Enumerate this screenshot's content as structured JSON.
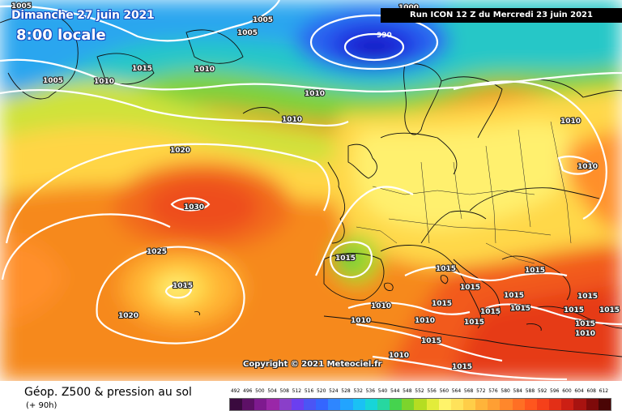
{
  "header": {
    "date_text": "Dimanche 27 juin 2021",
    "time_text": "8:00 locale",
    "run_text": "Run ICON 12 Z du Mercredi 23 juin 2021"
  },
  "map": {
    "isobar_labels": [
      "1005",
      "1005",
      "1005",
      "990",
      "1000",
      "1015",
      "1010",
      "1010",
      "1005",
      "1010",
      "1010",
      "1010",
      "1020",
      "1010",
      "1030",
      "1015",
      "1025",
      "1015",
      "1015",
      "1020",
      "1015",
      "1015",
      "1015",
      "1015",
      "1010",
      "1015",
      "1015",
      "1015",
      "1015",
      "1015",
      "1015",
      "1010",
      "1010",
      "1015",
      "1010",
      "1015",
      "1015",
      "1010"
    ],
    "copyright": "Copyright © 2021 Meteociel.fr"
  },
  "footer": {
    "title": "Géop. Z500 & pression au sol",
    "lead": "(+ 90h)",
    "scale_values": [
      "492",
      "496",
      "500",
      "504",
      "508",
      "512",
      "516",
      "520",
      "524",
      "528",
      "532",
      "536",
      "540",
      "544",
      "548",
      "552",
      "556",
      "560",
      "564",
      "568",
      "572",
      "576",
      "580",
      "584",
      "588",
      "592",
      "596",
      "600",
      "604",
      "608",
      "612"
    ],
    "scale_colors": [
      "#3a0a3e",
      "#5d1066",
      "#7e1a8f",
      "#9a27a8",
      "#8a3fc9",
      "#6b3ff0",
      "#4b55f5",
      "#3466ff",
      "#2e86ff",
      "#22a4ff",
      "#1ac1f4",
      "#17d5d8",
      "#27d7a0",
      "#45d34e",
      "#7cd42c",
      "#b5dd22",
      "#e3ec3a",
      "#fff36a",
      "#ffe25a",
      "#ffce48",
      "#ffb43a",
      "#ff9f33",
      "#ff872b",
      "#ff6f24",
      "#ff561e",
      "#f5401a",
      "#e32f17",
      "#cc1f14",
      "#a81310",
      "#7e0a0a",
      "#4a0505"
    ]
  }
}
